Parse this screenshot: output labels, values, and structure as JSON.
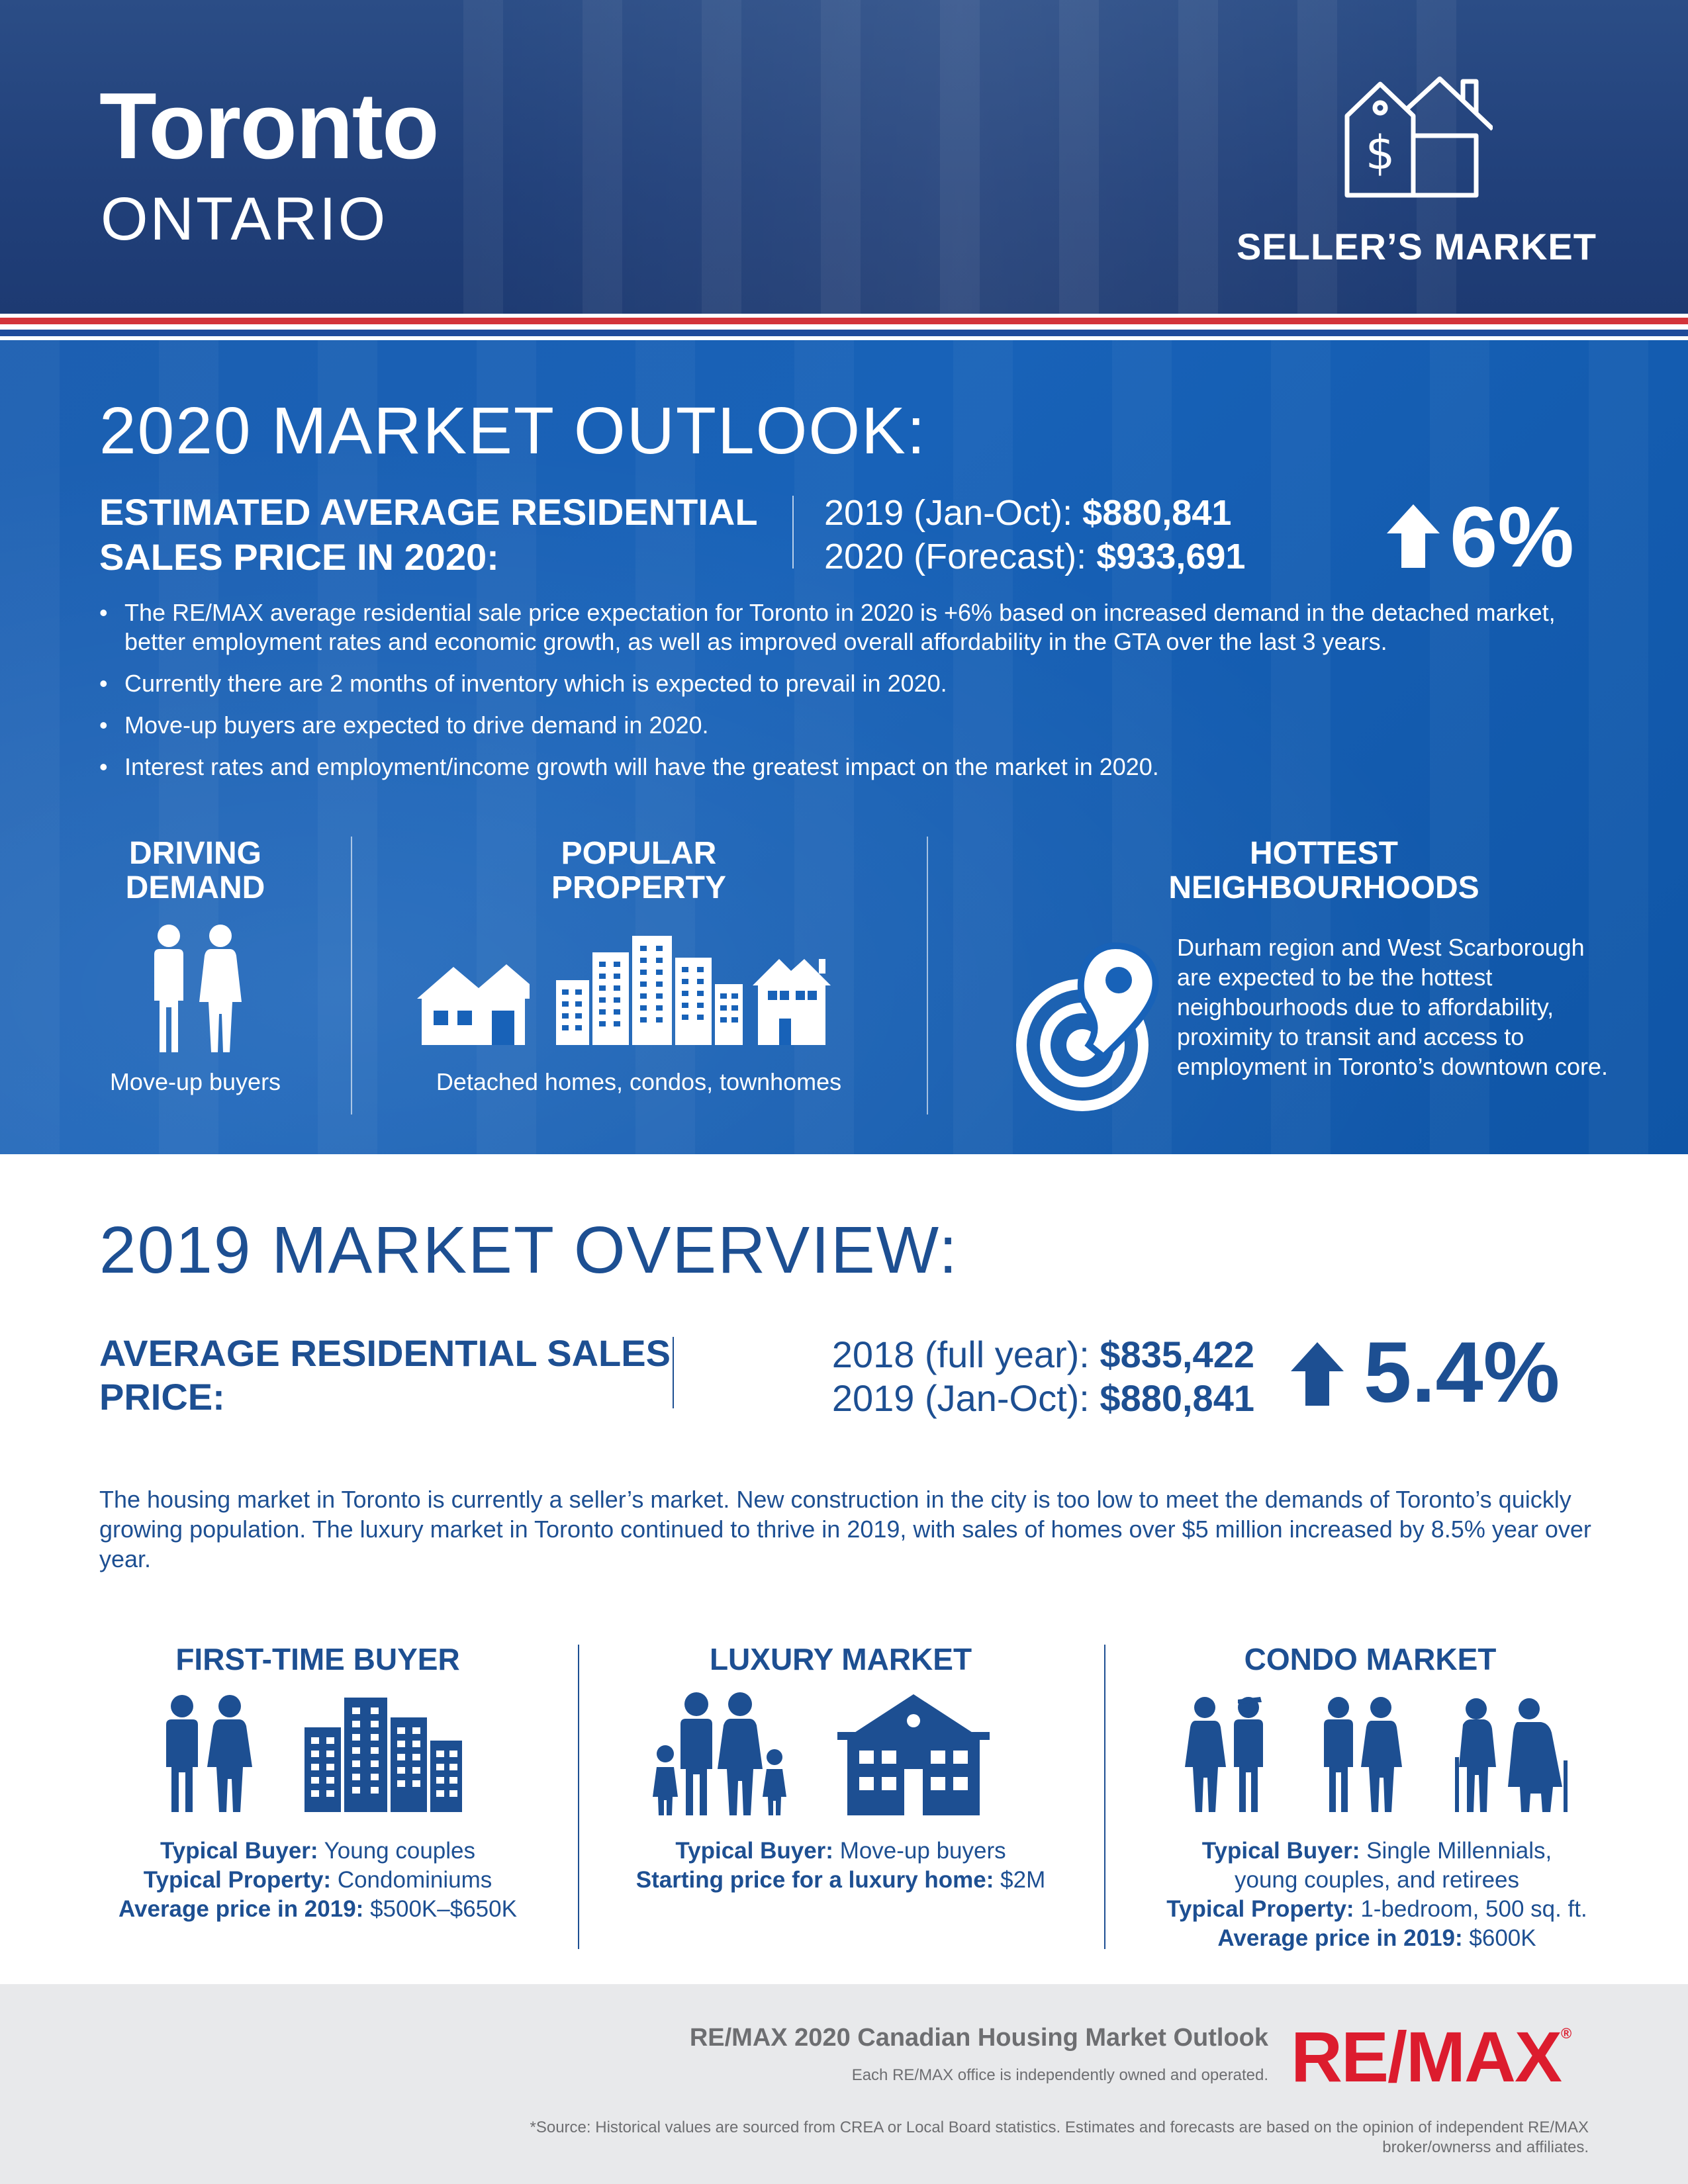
{
  "header": {
    "city": "Toronto",
    "province": "ONTARIO",
    "market_type": "SELLER’S MARKET",
    "market_icon": "house-price-tag-icon"
  },
  "outlook": {
    "title": "2020 MARKET OUTLOOK:",
    "estimate_label": "ESTIMATED AVERAGE RESIDENTIAL SALES PRICE IN 2020:",
    "prev_label": "2019 (Jan-Oct):",
    "prev_value": "$880,841",
    "forecast_label": "2020 (Forecast):",
    "forecast_value": "$933,691",
    "change": "6%",
    "bullets": [
      "The RE/MAX average residential sale price expectation for Toronto in 2020 is +6% based on increased demand in the detached market, better employment rates and economic growth, as well as improved overall affordability in the GTA over the last 3 years.",
      "Currently there are 2 months of inventory which is expected to prevail in 2020.",
      "Move-up buyers are expected to drive demand in 2020.",
      "Interest rates and employment/income growth will have the greatest impact on the market in 2020."
    ],
    "driving_demand": {
      "title": "DRIVING DEMAND",
      "caption": "Move-up buyers"
    },
    "popular_property": {
      "title": "POPULAR PROPERTY",
      "caption": "Detached homes, condos, townhomes"
    },
    "hottest_neighbourhoods": {
      "title": "HOTTEST NEIGHBOURHOODS",
      "text": "Durham region and West Scarborough are expected to be the hottest neighbourhoods due to affordability, proximity to transit and access to employment in Toronto’s downtown core."
    }
  },
  "overview": {
    "title": "2019 MARKET OVERVIEW:",
    "label": "AVERAGE RESIDENTIAL SALES PRICE:",
    "prev_label": "2018 (full year):",
    "prev_value": "$835,422",
    "curr_label": "2019 (Jan-Oct):",
    "curr_value": "$880,841",
    "change": "5.4%",
    "paragraph": "The housing market in Toronto is currently a seller’s market. New construction in the city is too low to meet the demands of Toronto’s quickly growing population. The luxury market in Toronto continued to thrive in 2019, with sales of homes over $5 million increased by 8.5% year over year.",
    "segments": {
      "first_time": {
        "title": "FIRST-TIME BUYER",
        "buyer_label": "Typical Buyer:",
        "buyer": "Young couples",
        "property_label": "Typical Property:",
        "property": "Condominiums",
        "price_label": "Average price in 2019:",
        "price": "$500K–$650K"
      },
      "luxury": {
        "title": "LUXURY MARKET",
        "buyer_label": "Typical Buyer:",
        "buyer": "Move-up buyers",
        "start_label": "Starting price for a luxury home:",
        "start": "$2M"
      },
      "condo": {
        "title": "CONDO MARKET",
        "buyer_label": "Typical Buyer:",
        "buyer_line1": "Single Millennials,",
        "buyer_line2": "young couples, and retirees",
        "property_label": "Typical Property:",
        "property": "1-bedroom, 500 sq. ft.",
        "price_label": "Average price in 2019:",
        "price": "$600K"
      }
    }
  },
  "footer": {
    "title": "RE/MAX 2020 Canadian Housing Market Outlook",
    "owned": "Each RE/MAX office is independently owned and operated.",
    "logo": "RE/MAX",
    "logo_reg": "®",
    "source": "*Source: Historical values are sourced from CREA or Local Board statistics. Estimates and forecasts are based on the opinion of independent RE/MAX broker/ownerss and affiliates."
  },
  "colors": {
    "brand_blue": "#1d4f92",
    "panel_blue": "#1862b8",
    "header_blue": "#21407a",
    "remax_red": "#dc1c2e"
  }
}
